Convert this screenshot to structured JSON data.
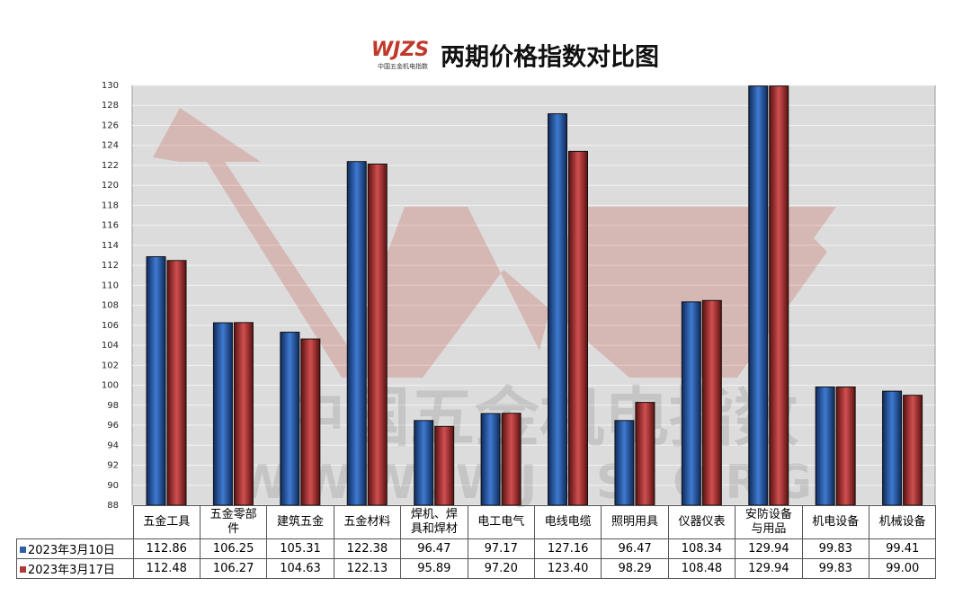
{
  "chart_data": {
    "type": "bar",
    "title": "两期价格指数对比图",
    "logo": "WJZS",
    "logo_caption": "中国五金机电指数",
    "watermark": "中国五金机电指数",
    "watermark_url": "WWW.WJZS.ORG",
    "categories": [
      "五金工具",
      "五金零部件",
      "建筑五金",
      "五金材料",
      "焊机、焊具和焊材",
      "电工电气",
      "电线电缆",
      "照明用具",
      "仪器仪表",
      "安防设备与用品",
      "机电设备",
      "机械设备"
    ],
    "series": [
      {
        "name": "2023年3月10日",
        "color": "#2e5fa8",
        "values": [
          112.86,
          106.25,
          105.31,
          122.38,
          96.47,
          97.17,
          127.16,
          96.47,
          108.34,
          129.94,
          99.83,
          99.41
        ],
        "value_labels": [
          "112.86",
          "106.25",
          "105.31",
          "122.38",
          "96.47",
          "97.17",
          "127.16",
          "96.47",
          "108.34",
          "129.94",
          "99.83",
          "99.41"
        ]
      },
      {
        "name": "2023年3月17日",
        "color": "#b03a3a",
        "values": [
          112.48,
          106.27,
          104.63,
          122.13,
          95.89,
          97.2,
          123.4,
          98.29,
          108.48,
          129.94,
          99.83,
          99.0
        ],
        "value_labels": [
          "112.48",
          "106.27",
          "104.63",
          "122.13",
          "95.89",
          "97.20",
          "123.40",
          "98.29",
          "108.48",
          "129.94",
          "99.83",
          "99.00"
        ]
      }
    ],
    "ylim": [
      88,
      130
    ],
    "yticks": [
      88,
      90,
      92,
      94,
      96,
      98,
      100,
      102,
      104,
      106,
      108,
      110,
      112,
      114,
      116,
      118,
      120,
      122,
      124,
      126,
      128,
      130
    ],
    "grid": true
  }
}
